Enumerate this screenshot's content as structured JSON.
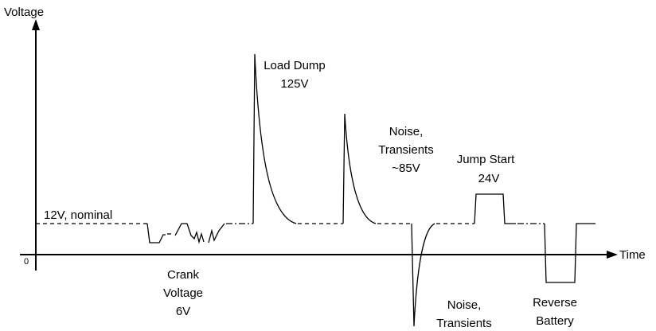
{
  "axes": {
    "y_label": "Voltage",
    "x_label": "Time",
    "origin": "0"
  },
  "annotations": {
    "nominal": [
      "12V, nominal"
    ],
    "crank": [
      "Crank",
      "Voltage",
      "6V"
    ],
    "load_dump": [
      "Load Dump",
      "125V"
    ],
    "noise_high": [
      "Noise,",
      "Transients",
      "~85V"
    ],
    "jump_start": [
      "Jump Start",
      "24V"
    ],
    "noise_low": [
      "Noise,",
      "Transients"
    ],
    "reverse": [
      "Reverse",
      "Battery"
    ]
  }
}
